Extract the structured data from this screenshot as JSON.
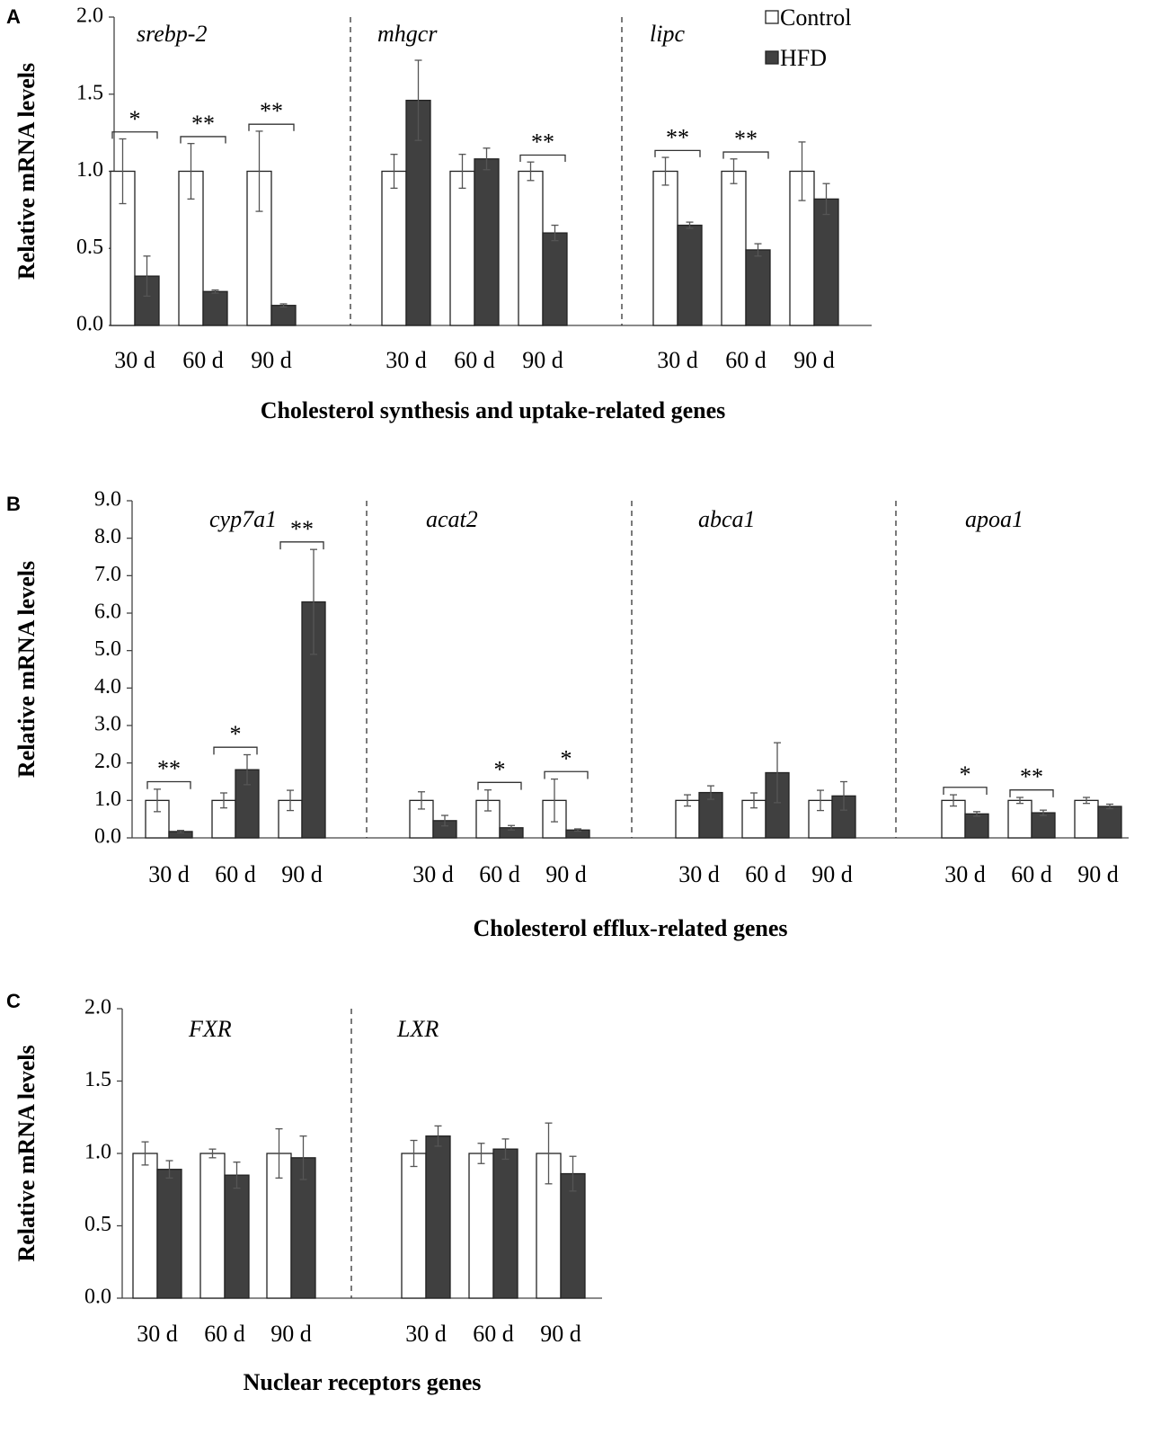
{
  "colors": {
    "control_fill": "#ffffff",
    "hfd_fill": "#404040",
    "error_bar": "#555555",
    "axis": "#444444"
  },
  "legend": [
    {
      "label": "Control",
      "color": "#ffffff"
    },
    {
      "label": "HFD",
      "color": "#404040"
    }
  ],
  "chart_data": [
    {
      "type": "bar",
      "panel": "A",
      "ylabel": "Relative mRNA levels",
      "xlabel": "Cholesterol synthesis and uptake-related genes",
      "ylim": [
        0,
        2.0
      ],
      "yticks": [
        "0.0",
        "0.5",
        "1.0",
        "1.5",
        "2.0"
      ],
      "groups": [
        {
          "gene": "srebp-2",
          "categories": [
            "30 d",
            "60 d",
            "90 d"
          ],
          "control": [
            1.0,
            1.0,
            1.0
          ],
          "control_err": [
            0.21,
            0.18,
            0.26
          ],
          "hfd": [
            0.32,
            0.22,
            0.13
          ],
          "hfd_err": [
            0.13,
            0.01,
            0.01
          ],
          "sig": [
            "*",
            "**",
            "**"
          ]
        },
        {
          "gene": "mhgcr",
          "categories": [
            "30 d",
            "60 d",
            "90 d"
          ],
          "control": [
            1.0,
            1.0,
            1.0
          ],
          "control_err": [
            0.11,
            0.11,
            0.06
          ],
          "hfd": [
            1.46,
            1.08,
            0.6
          ],
          "hfd_err": [
            0.26,
            0.07,
            0.05
          ],
          "sig": [
            "",
            "",
            "**"
          ]
        },
        {
          "gene": "lipc",
          "categories": [
            "30 d",
            "60 d",
            "90 d"
          ],
          "control": [
            1.0,
            1.0,
            1.0
          ],
          "control_err": [
            0.09,
            0.08,
            0.19
          ],
          "hfd": [
            0.65,
            0.49,
            0.82
          ],
          "hfd_err": [
            0.02,
            0.04,
            0.1
          ],
          "sig": [
            "**",
            "**",
            ""
          ]
        }
      ]
    },
    {
      "type": "bar",
      "panel": "B",
      "ylabel": "Relative mRNA levels",
      "xlabel": "Cholesterol efflux-related genes",
      "ylim": [
        0,
        9.0
      ],
      "yticks": [
        "0.0",
        "1.0",
        "2.0",
        "3.0",
        "4.0",
        "5.0",
        "6.0",
        "7.0",
        "8.0",
        "9.0"
      ],
      "groups": [
        {
          "gene": "cyp7a1",
          "categories": [
            "30 d",
            "60 d",
            "90 d"
          ],
          "control": [
            1.0,
            1.0,
            1.0
          ],
          "control_err": [
            0.3,
            0.2,
            0.27
          ],
          "hfd": [
            0.17,
            1.82,
            6.3
          ],
          "hfd_err": [
            0.03,
            0.4,
            1.4
          ],
          "sig": [
            "**",
            "*",
            "**"
          ]
        },
        {
          "gene": "acat2",
          "categories": [
            "30 d",
            "60 d",
            "90 d"
          ],
          "control": [
            1.0,
            1.0,
            1.0
          ],
          "control_err": [
            0.23,
            0.28,
            0.57
          ],
          "hfd": [
            0.46,
            0.27,
            0.21
          ],
          "hfd_err": [
            0.14,
            0.06,
            0.03
          ],
          "sig": [
            "",
            "*",
            "*"
          ]
        },
        {
          "gene": "abca1",
          "categories": [
            "30 d",
            "60 d",
            "90 d"
          ],
          "control": [
            1.0,
            1.0,
            1.0
          ],
          "control_err": [
            0.15,
            0.2,
            0.27
          ],
          "hfd": [
            1.21,
            1.74,
            1.12
          ],
          "hfd_err": [
            0.18,
            0.8,
            0.38
          ],
          "sig": [
            "",
            "",
            ""
          ]
        },
        {
          "gene": "apoa1",
          "categories": [
            "30 d",
            "60 d",
            "90 d"
          ],
          "control": [
            1.0,
            1.0,
            1.0
          ],
          "control_err": [
            0.15,
            0.08,
            0.08
          ],
          "hfd": [
            0.64,
            0.67,
            0.84
          ],
          "hfd_err": [
            0.06,
            0.07,
            0.06
          ],
          "sig": [
            "*",
            "**",
            ""
          ]
        }
      ]
    },
    {
      "type": "bar",
      "panel": "C",
      "ylabel": "Relative mRNA levels",
      "xlabel": "Nuclear receptors genes",
      "ylim": [
        0,
        2.0
      ],
      "yticks": [
        "0.0",
        "0.5",
        "1.0",
        "1.5",
        "2.0"
      ],
      "groups": [
        {
          "gene": "FXR",
          "categories": [
            "30 d",
            "60 d",
            "90 d"
          ],
          "control": [
            1.0,
            1.0,
            1.0
          ],
          "control_err": [
            0.08,
            0.03,
            0.17
          ],
          "hfd": [
            0.89,
            0.85,
            0.97
          ],
          "hfd_err": [
            0.06,
            0.09,
            0.15
          ],
          "sig": [
            "",
            "",
            ""
          ]
        },
        {
          "gene": "LXR",
          "categories": [
            "30 d",
            "60 d",
            "90 d"
          ],
          "control": [
            1.0,
            1.0,
            1.0
          ],
          "control_err": [
            0.09,
            0.07,
            0.21
          ],
          "hfd": [
            1.12,
            1.03,
            0.86
          ],
          "hfd_err": [
            0.07,
            0.07,
            0.12
          ],
          "sig": [
            "",
            "",
            ""
          ]
        }
      ]
    }
  ]
}
